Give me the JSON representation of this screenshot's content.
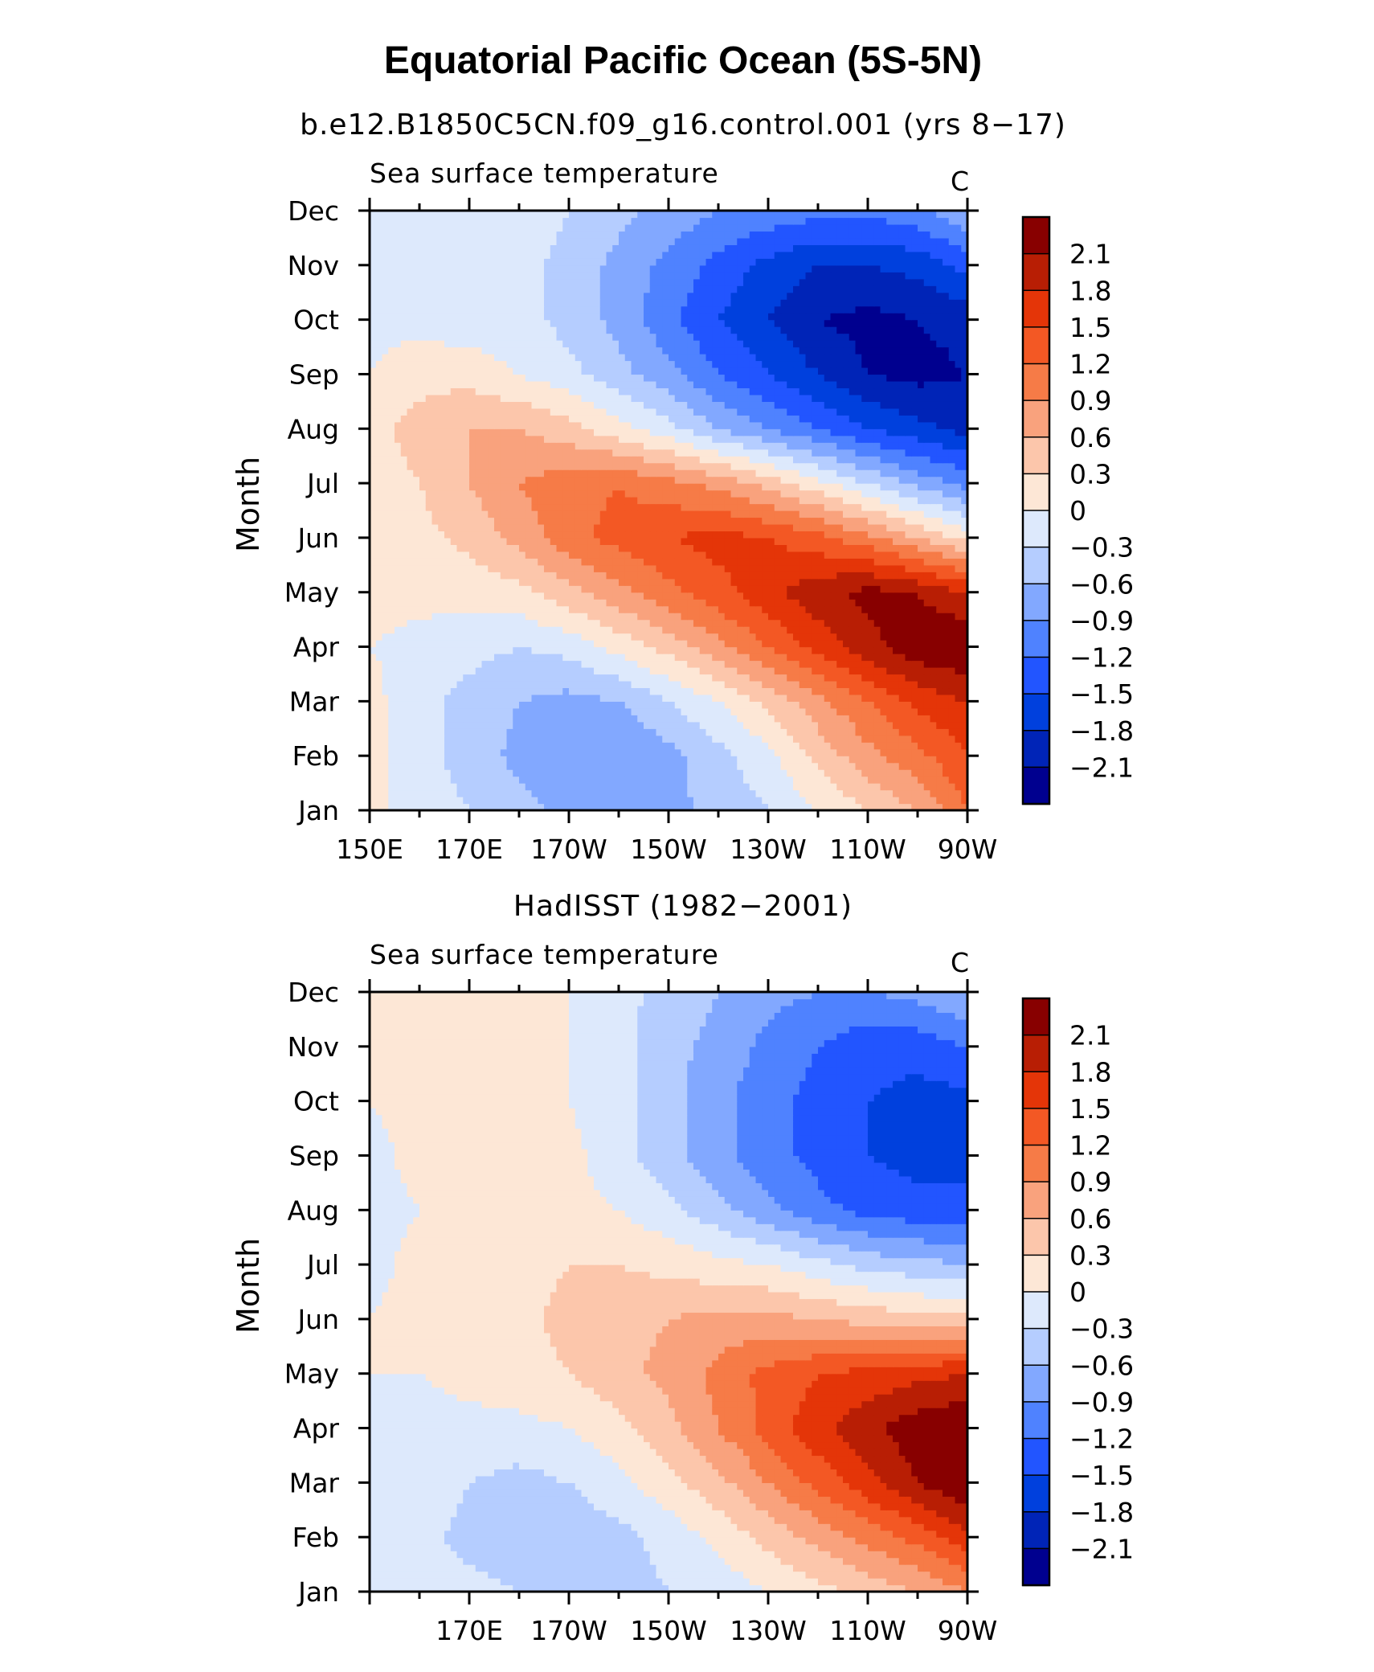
{
  "title": "Equatorial Pacific Ocean (5S-5N)",
  "colormap": {
    "levels": [
      -2.1,
      -1.8,
      -1.5,
      -1.2,
      -0.9,
      -0.6,
      -0.3,
      0,
      0.3,
      0.6,
      0.9,
      1.2,
      1.5,
      1.8,
      2.1
    ],
    "level_labels": [
      "2.1",
      "1.8",
      "1.5",
      "1.2",
      "0.9",
      "0.6",
      "0.3",
      "0",
      "−0.3",
      "−0.6",
      "−0.9",
      "−1.2",
      "−1.5",
      "−1.8",
      "−2.1"
    ],
    "colors": [
      "#00008f",
      "#0024b7",
      "#0040dd",
      "#2255ff",
      "#4f82ff",
      "#82a8ff",
      "#b5cdff",
      "#dde9fc",
      "#fde7d6",
      "#fcc6ab",
      "#f9a27d",
      "#f67b47",
      "#f35824",
      "#e43508",
      "#b81e04",
      "#880000"
    ]
  },
  "chart_data": [
    {
      "type": "heatmap",
      "panel_title": "b.e12.B1850C5CN.f09_g16.control.001 (yrs 8−17)",
      "variable": "Sea surface temperature",
      "units": "C",
      "ylabel": "Month",
      "months": [
        "Jan",
        "Feb",
        "Mar",
        "Apr",
        "May",
        "Jun",
        "Jul",
        "Aug",
        "Sep",
        "Oct",
        "Nov",
        "Dec"
      ],
      "x_tick_labels": [
        "150E",
        "170E",
        "170W",
        "150W",
        "130W",
        "110W",
        "90W"
      ],
      "x_tick_lon": [
        150,
        170,
        190,
        210,
        230,
        250,
        270
      ],
      "xlim": [
        150,
        270
      ],
      "lon": [
        150,
        160,
        170,
        180,
        190,
        200,
        210,
        220,
        230,
        240,
        250,
        260,
        270
      ],
      "values": [
        [
          0.1,
          -0.2,
          -0.3,
          -0.5,
          -0.7,
          -0.8,
          -0.7,
          -0.5,
          -0.3,
          0.0,
          0.3,
          0.6,
          1.2
        ],
        [
          0.1,
          -0.2,
          -0.4,
          -0.7,
          -0.9,
          -0.9,
          -0.7,
          -0.4,
          -0.1,
          0.4,
          0.8,
          1.1,
          1.5
        ],
        [
          0.1,
          -0.2,
          -0.4,
          -0.6,
          -0.7,
          -0.6,
          -0.3,
          0.0,
          0.4,
          0.8,
          1.2,
          1.6,
          1.8
        ],
        [
          0.0,
          -0.1,
          -0.2,
          -0.3,
          -0.2,
          0.1,
          0.4,
          0.8,
          1.2,
          1.6,
          2.0,
          2.3,
          2.4
        ],
        [
          0.1,
          0.1,
          0.1,
          0.2,
          0.5,
          0.8,
          1.1,
          1.4,
          1.7,
          2.0,
          2.2,
          2.1,
          1.8
        ],
        [
          0.1,
          0.2,
          0.4,
          0.7,
          1.1,
          1.3,
          1.5,
          1.6,
          1.5,
          1.3,
          1.0,
          0.6,
          0.2
        ],
        [
          0.2,
          0.3,
          0.6,
          0.9,
          1.1,
          1.2,
          1.0,
          0.8,
          0.5,
          0.1,
          -0.3,
          -0.7,
          -1.0
        ],
        [
          0.2,
          0.4,
          0.6,
          0.6,
          0.4,
          0.1,
          -0.2,
          -0.6,
          -0.9,
          -1.2,
          -1.5,
          -1.7,
          -1.9
        ],
        [
          0.0,
          0.2,
          0.2,
          0.0,
          -0.2,
          -0.5,
          -0.8,
          -1.2,
          -1.5,
          -1.8,
          -2.1,
          -2.2,
          -2.1
        ],
        [
          -0.1,
          -0.1,
          -0.2,
          -0.2,
          -0.4,
          -0.7,
          -1.1,
          -1.5,
          -1.8,
          -2.1,
          -2.2,
          -2.1,
          -2.0
        ],
        [
          -0.1,
          -0.1,
          -0.1,
          -0.2,
          -0.4,
          -0.7,
          -1.0,
          -1.3,
          -1.6,
          -1.8,
          -1.8,
          -1.7,
          -1.4
        ],
        [
          0.0,
          -0.1,
          -0.1,
          -0.1,
          -0.3,
          -0.5,
          -0.7,
          -0.9,
          -1.0,
          -1.1,
          -1.1,
          -1.0,
          -0.6
        ]
      ]
    },
    {
      "type": "heatmap",
      "panel_title": "HadISST (1982−2001)",
      "variable": "Sea surface temperature",
      "units": "C",
      "ylabel": "Month",
      "months": [
        "Jan",
        "Feb",
        "Mar",
        "Apr",
        "May",
        "Jun",
        "Jul",
        "Aug",
        "Sep",
        "Oct",
        "Nov",
        "Dec"
      ],
      "x_tick_labels": [
        "170E",
        "170W",
        "150W",
        "130W",
        "110W",
        "90W"
      ],
      "x_tick_lon": [
        170,
        190,
        210,
        230,
        250,
        270
      ],
      "xlim": [
        150,
        270
      ],
      "lon": [
        150,
        160,
        170,
        180,
        190,
        200,
        210,
        220,
        230,
        240,
        250,
        260,
        270
      ],
      "values": [
        [
          0.0,
          -0.1,
          -0.2,
          -0.3,
          -0.4,
          -0.4,
          -0.3,
          -0.2,
          0.0,
          0.2,
          0.4,
          0.6,
          0.9
        ],
        [
          -0.1,
          -0.2,
          -0.4,
          -0.5,
          -0.5,
          -0.4,
          -0.2,
          0.1,
          0.4,
          0.7,
          1.0,
          1.3,
          1.7
        ],
        [
          -0.1,
          -0.1,
          -0.3,
          -0.4,
          -0.3,
          -0.1,
          0.2,
          0.5,
          0.9,
          1.3,
          1.7,
          2.1,
          2.4
        ],
        [
          0.0,
          -0.1,
          -0.1,
          -0.1,
          0.0,
          0.2,
          0.5,
          0.9,
          1.3,
          1.7,
          2.0,
          2.3,
          2.4
        ],
        [
          0.0,
          0.0,
          0.1,
          0.2,
          0.3,
          0.5,
          0.7,
          1.0,
          1.3,
          1.5,
          1.6,
          1.7,
          1.8
        ],
        [
          0.0,
          0.1,
          0.1,
          0.2,
          0.4,
          0.5,
          0.6,
          0.7,
          0.7,
          0.6,
          0.5,
          0.4,
          0.4
        ],
        [
          -0.1,
          0.1,
          0.1,
          0.2,
          0.3,
          0.3,
          0.2,
          0.1,
          0.0,
          -0.2,
          -0.4,
          -0.5,
          -0.6
        ],
        [
          -0.1,
          0.0,
          0.1,
          0.1,
          0.1,
          0.0,
          -0.2,
          -0.5,
          -0.8,
          -1.1,
          -1.3,
          -1.4,
          -1.4
        ],
        [
          -0.1,
          0.1,
          0.2,
          0.3,
          0.1,
          -0.2,
          -0.5,
          -0.8,
          -1.1,
          -1.3,
          -1.5,
          -1.6,
          -1.6
        ],
        [
          0.0,
          0.1,
          0.1,
          0.1,
          0.0,
          -0.2,
          -0.5,
          -0.8,
          -1.1,
          -1.3,
          -1.5,
          -1.6,
          -1.6
        ],
        [
          0.1,
          0.1,
          0.1,
          0.1,
          0.0,
          -0.2,
          -0.5,
          -0.7,
          -1.0,
          -1.2,
          -1.4,
          -1.4,
          -1.2
        ],
        [
          0.1,
          0.1,
          0.1,
          0.1,
          0.0,
          -0.2,
          -0.4,
          -0.6,
          -0.8,
          -0.9,
          -0.9,
          -0.8,
          -0.6
        ]
      ]
    }
  ]
}
